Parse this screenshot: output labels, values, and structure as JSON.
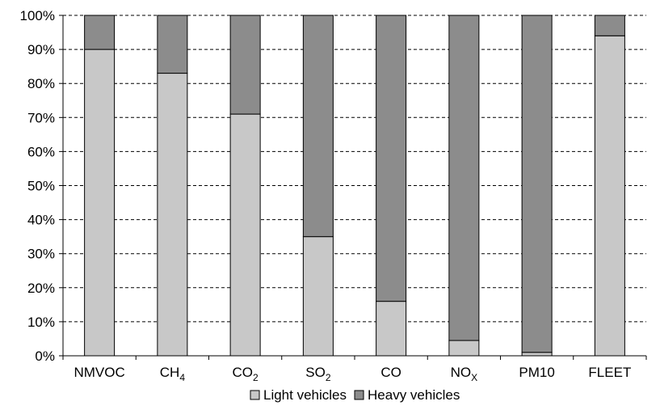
{
  "chart_data": {
    "type": "bar",
    "stacked": true,
    "percent": true,
    "categories": [
      {
        "base": "NMVOC",
        "sub": ""
      },
      {
        "base": "CH",
        "sub": "4"
      },
      {
        "base": "CO",
        "sub": "2"
      },
      {
        "base": "SO",
        "sub": "2"
      },
      {
        "base": "CO",
        "sub": ""
      },
      {
        "base": "NO",
        "sub": "X"
      },
      {
        "base": "PM10",
        "sub": ""
      },
      {
        "base": "FLEET",
        "sub": ""
      }
    ],
    "series": [
      {
        "name": "Light vehicles",
        "color": "#c8c8c8",
        "values": [
          90,
          83,
          71,
          35,
          16,
          4.5,
          1,
          94
        ]
      },
      {
        "name": "Heavy vehicles",
        "color": "#8c8c8c",
        "values": [
          10,
          17,
          29,
          65,
          84,
          95.5,
          99,
          6
        ]
      }
    ],
    "ylim": [
      0,
      100
    ],
    "yticks": [
      "0%",
      "10%",
      "20%",
      "30%",
      "40%",
      "50%",
      "60%",
      "70%",
      "80%",
      "90%",
      "100%"
    ],
    "grid": true,
    "grid_style": "dashed",
    "legend": "bottom"
  }
}
